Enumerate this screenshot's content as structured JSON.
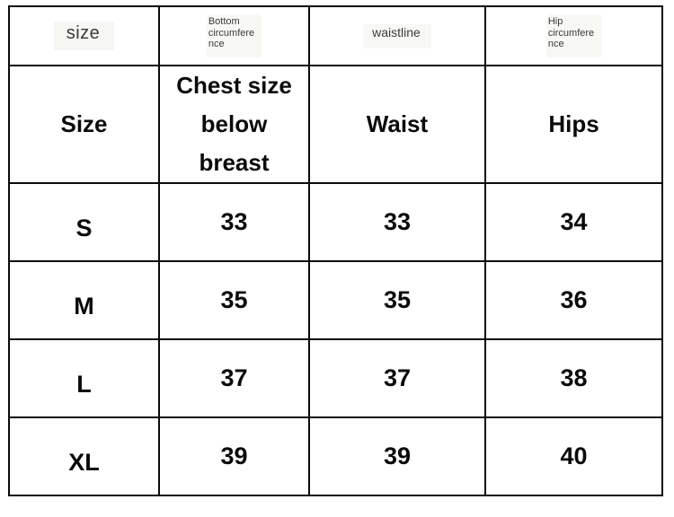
{
  "colors": {
    "background": "#ffffff",
    "border": "#0b0b0b",
    "text_primary": "#0a0a0a",
    "text_overlay": "#3a3a3a",
    "overlay_patch": "#f6f6f2"
  },
  "size_chart": {
    "overlay_header": {
      "size": "size",
      "bottom_circumference_lines": [
        "Bottom",
        "circumfere",
        "nce"
      ],
      "waistline": "waistline",
      "hip_circumference_lines": [
        "Hip",
        "circumfere",
        "nce"
      ]
    },
    "header": {
      "size": "Size",
      "chest_lines": [
        "Chest size",
        "below",
        "breast"
      ],
      "waist": "Waist",
      "hips": "Hips"
    },
    "rows": [
      {
        "size": "S",
        "chest": "33",
        "waist": "33",
        "hips": "34"
      },
      {
        "size": "M",
        "chest": "35",
        "waist": "35",
        "hips": "36"
      },
      {
        "size": "L",
        "chest": "37",
        "waist": "37",
        "hips": "38"
      },
      {
        "size": "XL",
        "chest": "39",
        "waist": "39",
        "hips": "40"
      }
    ]
  },
  "chart_data": {
    "type": "table",
    "columns": [
      "Size",
      "Chest size below breast",
      "Waist",
      "Hips"
    ],
    "rows": [
      [
        "S",
        33,
        33,
        34
      ],
      [
        "M",
        35,
        35,
        36
      ],
      [
        "L",
        37,
        37,
        38
      ],
      [
        "XL",
        39,
        39,
        40
      ]
    ]
  }
}
